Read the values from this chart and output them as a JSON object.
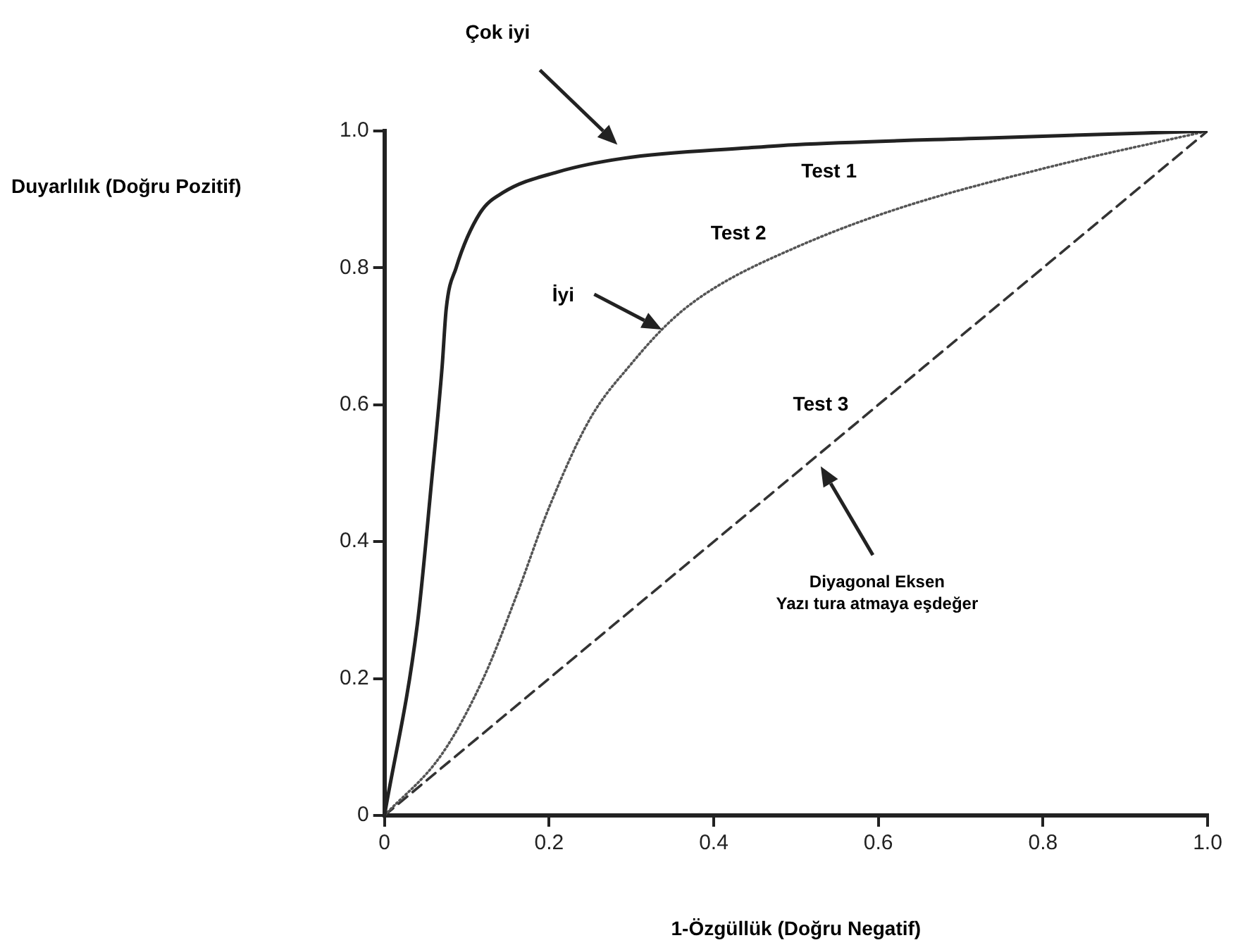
{
  "chart_data": {
    "type": "line",
    "xlabel": "1-Özgüllük (Doğru Negatif)",
    "ylabel": "Duyarlılık (Doğru Pozitif)",
    "xlim": [
      0,
      1
    ],
    "ylim": [
      0,
      1
    ],
    "xticks": [
      0,
      0.2,
      0.4,
      0.6,
      0.8,
      {
        "value": 1,
        "label": "1.0"
      }
    ],
    "yticks": [
      0,
      0.2,
      0.4,
      0.6,
      0.8,
      {
        "value": 1,
        "label": "1.0"
      }
    ],
    "grid": false,
    "legend": false,
    "marker": "none",
    "series": [
      {
        "name": "Test 1",
        "color": "#222222",
        "line_style": "solid",
        "x": [
          0,
          0.04,
          0.057,
          0.07,
          0.075,
          0.087,
          0.116,
          0.144,
          0.21,
          0.29,
          0.45,
          0.5,
          0.74,
          1
        ],
        "values": [
          0,
          0.28,
          0.485,
          0.655,
          0.74,
          0.8,
          0.88,
          0.91,
          0.94,
          0.96,
          0.976,
          0.98,
          0.99,
          1
        ]
      },
      {
        "name": "Test 2",
        "color": "#555555",
        "line_style": "dotted",
        "x": [
          0,
          0.07,
          0.12,
          0.16,
          0.2,
          0.25,
          0.3,
          0.35,
          0.4,
          0.5,
          0.62,
          0.8,
          1
        ],
        "values": [
          0,
          0.09,
          0.2,
          0.32,
          0.45,
          0.58,
          0.66,
          0.725,
          0.77,
          0.83,
          0.885,
          0.945,
          1
        ]
      },
      {
        "name": "Test 3",
        "color": "#333333",
        "line_style": "dashed",
        "x": [
          0,
          1
        ],
        "values": [
          0,
          1
        ]
      }
    ],
    "annotations": [
      "Çok iyi",
      "İyi",
      "Diyagonal Eksen\nYazı tura atmaya eşdeğer"
    ]
  }
}
